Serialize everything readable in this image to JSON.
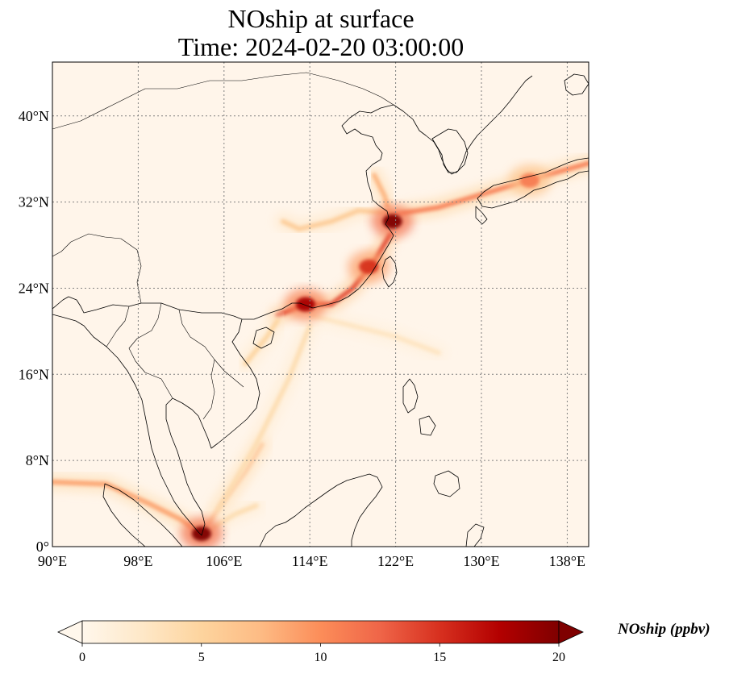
{
  "title": {
    "line1": "NOship at surface",
    "line2": "Time: 2024-02-20 03:00:00"
  },
  "map": {
    "projection": "PlateCarree",
    "lon_range": [
      90,
      140
    ],
    "lat_range": [
      0,
      45
    ],
    "gridlines": true,
    "coastlines": true,
    "borders": true,
    "background_color": "#fff5ea",
    "x_ticks": [
      {
        "value": 90,
        "label": "90°E"
      },
      {
        "value": 98,
        "label": "98°E"
      },
      {
        "value": 106,
        "label": "106°E"
      },
      {
        "value": 114,
        "label": "114°E"
      },
      {
        "value": 122,
        "label": "122°E"
      },
      {
        "value": 130,
        "label": "130°E"
      },
      {
        "value": 138,
        "label": "138°E"
      }
    ],
    "y_ticks": [
      {
        "value": 0,
        "label": "0°"
      },
      {
        "value": 8,
        "label": "8°N"
      },
      {
        "value": 16,
        "label": "16°N"
      },
      {
        "value": 24,
        "label": "24°N"
      },
      {
        "value": 32,
        "label": "32°N"
      },
      {
        "value": 40,
        "label": "40°N"
      }
    ],
    "emission_hotspots": [
      {
        "name": "yangtze-delta-shanghai",
        "lon": 121.7,
        "lat": 30.2,
        "level": 20
      },
      {
        "name": "pearl-river-delta",
        "lon": 113.6,
        "lat": 22.5,
        "level": 18
      },
      {
        "name": "singapore-strait",
        "lon": 103.9,
        "lat": 1.2,
        "level": 20
      },
      {
        "name": "taiwan-strait",
        "lon": 119.5,
        "lat": 26.0,
        "level": 15
      },
      {
        "name": "japan-pacific-coast",
        "lon": 134.5,
        "lat": 34.0,
        "level": 11
      }
    ],
    "shipping_lanes": [
      {
        "name": "shanghai-to-japan",
        "points": [
          [
            121.5,
            30.8
          ],
          [
            126,
            31.5
          ],
          [
            131,
            33.0
          ],
          [
            135,
            34.2
          ],
          [
            140,
            35.6
          ]
        ],
        "level": 11
      },
      {
        "name": "south-china-coast",
        "points": [
          [
            111,
            21.5
          ],
          [
            113.6,
            22.5
          ],
          [
            116,
            22.5
          ],
          [
            118,
            24.0
          ],
          [
            120,
            26.5
          ],
          [
            121.5,
            29.0
          ]
        ],
        "level": 14
      },
      {
        "name": "yellow-sea-coast",
        "points": [
          [
            121.5,
            30.5
          ],
          [
            121.0,
            32.5
          ],
          [
            120.0,
            34.5
          ]
        ],
        "level": 8
      },
      {
        "name": "malacca-strait",
        "points": [
          [
            90,
            6.0
          ],
          [
            95,
            5.8
          ],
          [
            99,
            4.0
          ],
          [
            102,
            2.5
          ],
          [
            103.8,
            1.2
          ]
        ],
        "level": 9
      },
      {
        "name": "singapore-to-vietnam",
        "points": [
          [
            104.2,
            1.5
          ],
          [
            105.8,
            4.0
          ],
          [
            108,
            7.0
          ],
          [
            109.5,
            9.5
          ]
        ],
        "level": 8
      },
      {
        "name": "singapore-to-borneo",
        "points": [
          [
            104.5,
            1.5
          ],
          [
            107,
            3.0
          ],
          [
            109,
            3.8
          ]
        ],
        "level": 4
      },
      {
        "name": "scs-central-lane",
        "points": [
          [
            105.5,
            3.5
          ],
          [
            109,
            9.5
          ],
          [
            112,
            15.5
          ],
          [
            114,
            20.5
          ]
        ],
        "level": 4
      },
      {
        "name": "hainan-lane",
        "points": [
          [
            108,
            17
          ],
          [
            110,
            19.5
          ],
          [
            111,
            21.0
          ]
        ],
        "level": 5
      },
      {
        "name": "luzon-strait-lane",
        "points": [
          [
            114,
            21.5
          ],
          [
            118,
            20.5
          ],
          [
            122,
            19.5
          ],
          [
            126,
            18.0
          ]
        ],
        "level": 3
      },
      {
        "name": "yangtze-river",
        "points": [
          [
            121.5,
            31.0
          ],
          [
            118.5,
            31.2
          ],
          [
            116.0,
            30.2
          ],
          [
            113.0,
            29.5
          ],
          [
            111.5,
            30.2
          ]
        ],
        "level": 6
      }
    ]
  },
  "colorbar": {
    "title": "NOship (ppbv)",
    "min": 0,
    "max": 20,
    "extend": "both",
    "colormap": "OrRd",
    "colors": [
      "#fff7ec",
      "#fee8c8",
      "#fdd49e",
      "#fdbb84",
      "#fc8d59",
      "#ef6548",
      "#d7301f",
      "#b30000",
      "#7f0000"
    ],
    "ticks": [
      {
        "value": 0,
        "label": "0"
      },
      {
        "value": 5,
        "label": "5"
      },
      {
        "value": 10,
        "label": "10"
      },
      {
        "value": 15,
        "label": "15"
      },
      {
        "value": 20,
        "label": "20"
      }
    ]
  }
}
